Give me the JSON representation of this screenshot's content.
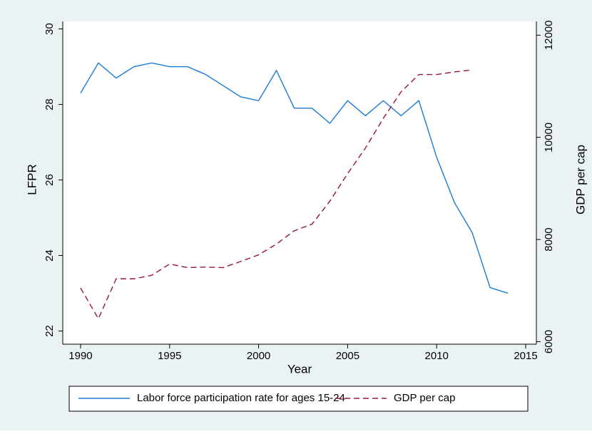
{
  "chart_data": {
    "type": "line",
    "x_label": "Year",
    "y_label": "LFPR",
    "y2_label": "GDP per cap",
    "x": [
      1990,
      1991,
      1992,
      1993,
      1994,
      1995,
      1996,
      1997,
      1998,
      1999,
      2000,
      2001,
      2002,
      2003,
      2004,
      2005,
      2006,
      2007,
      2008,
      2009,
      2010,
      2011,
      2012,
      2013,
      2014
    ],
    "series": [
      {
        "name": "Labor force participation rate for ages 15-24",
        "color": "#1a7bd4",
        "dash": "solid",
        "axis": "y",
        "values": [
          28.3,
          29.1,
          28.7,
          29.0,
          29.1,
          29.0,
          29.0,
          28.8,
          28.5,
          28.2,
          28.1,
          28.9,
          27.9,
          27.9,
          27.5,
          28.1,
          27.7,
          28.1,
          27.7,
          28.1,
          26.6,
          25.4,
          24.6,
          23.15,
          23.0
        ]
      },
      {
        "name": "GDP per cap",
        "color": "#99143a",
        "dash": "dashed",
        "axis": "y2",
        "values": [
          7050,
          6450,
          7230,
          7230,
          7300,
          7520,
          7450,
          7460,
          7450,
          7570,
          7700,
          7910,
          8170,
          8300,
          8750,
          9290,
          9790,
          10370,
          10890,
          11230,
          11230,
          11280,
          11320,
          null,
          null
        ]
      }
    ],
    "xlim": [
      1989,
      2015.6
    ],
    "xticks": [
      1990,
      1995,
      2000,
      2005,
      2010,
      2015
    ],
    "ylim": [
      21.65,
      30.2
    ],
    "yticks": [
      22,
      24,
      26,
      28,
      30
    ],
    "y2lim": [
      5950,
      12270
    ],
    "y2ticks": [
      6000,
      8000,
      10000,
      12000
    ],
    "legend": "bottom",
    "grid": false
  }
}
